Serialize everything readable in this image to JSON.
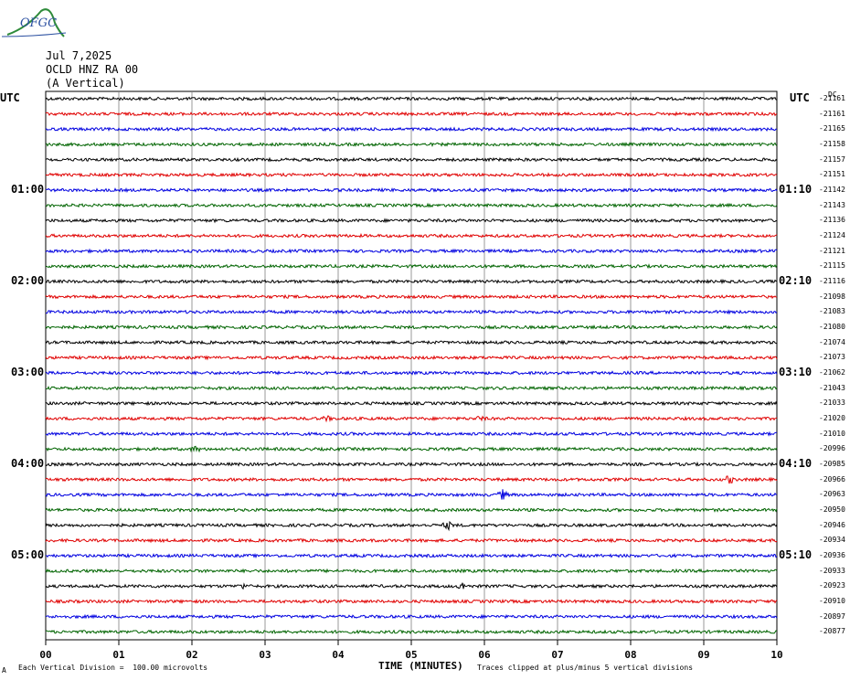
{
  "logo": {
    "text": "OFGC"
  },
  "header": {
    "date": "Jul 7,2025",
    "station": "OCLD HNZ RA 00",
    "component": "(A Vertical)"
  },
  "utc_left": "UTC",
  "utc_right": "UTC",
  "dc_label": "DC",
  "x_axis_title": "TIME (MINUTES)",
  "footer": {
    "mark": "A",
    "scale_note": "Each Vertical Division =  100.00 microvolts",
    "clip_note": "Traces clipped at plus/minus 5 vertical divisions"
  },
  "colors": {
    "black": "#000000",
    "red": "#e00000",
    "blue": "#0000e0",
    "green": "#006400",
    "grid": "#7f7f7f"
  },
  "chart_data": {
    "type": "line",
    "description_type": "seismogram (helicorder)",
    "x_ticks": [
      "00",
      "01",
      "02",
      "03",
      "04",
      "05",
      "06",
      "07",
      "08",
      "09",
      "10"
    ],
    "xlim": [
      0,
      10
    ],
    "trace_color_cycle": [
      "black",
      "red",
      "blue",
      "green"
    ],
    "left_time_labels": [
      {
        "row": 6,
        "text": "01:00"
      },
      {
        "row": 12,
        "text": "02:00"
      },
      {
        "row": 18,
        "text": "03:00"
      },
      {
        "row": 24,
        "text": "04:00"
      },
      {
        "row": 30,
        "text": "05:00"
      }
    ],
    "right_time_labels": [
      {
        "row": 6,
        "text": "01:10"
      },
      {
        "row": 12,
        "text": "02:10"
      },
      {
        "row": 18,
        "text": "03:10"
      },
      {
        "row": 24,
        "text": "04:10"
      },
      {
        "row": 30,
        "text": "05:10"
      }
    ],
    "dc_offsets": [
      "-21161",
      "-21161",
      "-21165",
      "-21158",
      "-21157",
      "-21151",
      "-21142",
      "-21143",
      "-21136",
      "-21124",
      "-21121",
      "-21115",
      "-21116",
      "-21098",
      "-21083",
      "-21080",
      "-21074",
      "-21073",
      "-21062",
      "-21043",
      "-21033",
      "-21020",
      "-21010",
      "-20996",
      "-20985",
      "-20966",
      "-20963",
      "-20950",
      "-20946",
      "-20934",
      "-20936",
      "-20933",
      "-20923",
      "-20910",
      "-20897",
      "-20877"
    ],
    "events": [
      {
        "row": 23,
        "minute": 2.05,
        "amp": 2.5
      },
      {
        "row": 25,
        "minute": 9.35,
        "amp": 4
      },
      {
        "row": 26,
        "minute": 6.25,
        "amp": 5
      },
      {
        "row": 28,
        "minute": 5.5,
        "amp": 4
      },
      {
        "row": 32,
        "minute": 5.7,
        "amp": 4
      },
      {
        "row": 32,
        "minute": 2.7,
        "amp": 2
      },
      {
        "row": 21,
        "minute": 3.85,
        "amp": 2
      },
      {
        "row": 21,
        "minute": 5.95,
        "amp": 2
      }
    ]
  }
}
